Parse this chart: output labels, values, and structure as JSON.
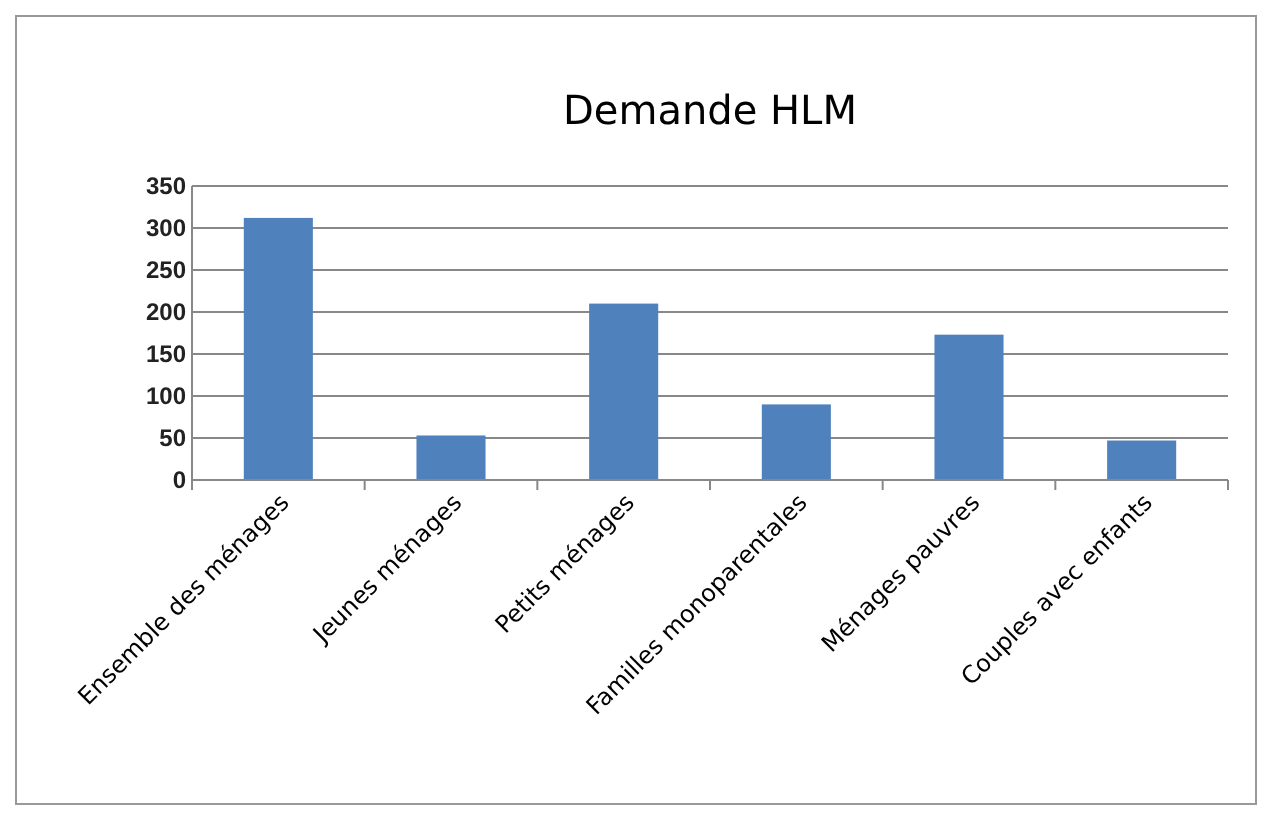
{
  "chart_data": {
    "type": "bar",
    "title": "Demande HLM",
    "categories": [
      "Ensemble des ménages",
      "Jeunes ménages",
      "Petits ménages",
      "Familles monoparentales",
      "Ménages pauvres",
      "Couples avec enfants"
    ],
    "values": [
      312,
      53,
      210,
      90,
      173,
      47
    ],
    "color": "#4f81bd",
    "ylim": [
      0,
      350
    ],
    "yticks": [
      0,
      50,
      100,
      150,
      200,
      250,
      300,
      350
    ],
    "grid": "y"
  }
}
